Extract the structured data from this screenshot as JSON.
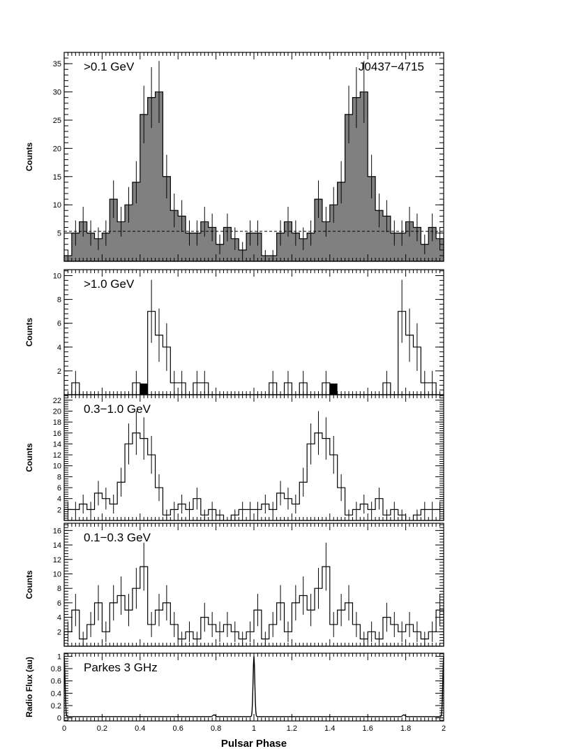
{
  "figure": {
    "x_axis_title": "Pulsar Phase",
    "pulsar_name": "J0437−4715"
  },
  "chart_data": [
    {
      "type": "histogram",
      "label": ">0.1 GeV",
      "ylabel": "Counts",
      "ylim": [
        0,
        37
      ],
      "yticks": [
        5,
        10,
        15,
        20,
        25,
        30,
        35
      ],
      "xlim": [
        0,
        2
      ],
      "bin_width": 0.04,
      "filled": true,
      "fill_color": "#808080",
      "values": [
        1,
        5,
        7,
        5,
        4,
        5,
        11,
        7,
        10,
        14,
        26,
        29,
        30,
        15,
        9,
        8,
        5,
        5,
        7,
        6,
        3,
        6,
        4,
        2,
        5,
        5,
        1
      ],
      "background_level": 5.3,
      "error_bars": true
    },
    {
      "type": "histogram",
      "label": ">1.0 GeV",
      "ylabel": "Counts",
      "ylim": [
        0,
        10.5
      ],
      "yticks": [
        2,
        4,
        6,
        8,
        10
      ],
      "xlim": [
        0,
        2
      ],
      "bin_width": 0.04,
      "filled": false,
      "values": [
        0,
        1,
        0,
        0,
        0,
        0,
        0,
        0,
        0,
        1,
        0,
        7,
        5,
        4,
        1,
        1,
        0,
        1,
        1,
        0,
        0,
        0,
        0,
        0,
        0,
        0,
        0,
        1,
        0,
        1,
        0,
        1,
        0
      ],
      "markers": [
        0.42,
        1.42
      ],
      "error_bars": true
    },
    {
      "type": "histogram",
      "label": "0.3−1.0 GeV",
      "ylabel": "Counts",
      "ylim": [
        0,
        23
      ],
      "yticks": [
        2,
        4,
        6,
        8,
        10,
        12,
        14,
        16,
        18,
        20,
        22
      ],
      "xlim": [
        0,
        2
      ],
      "bin_width": 0.04,
      "filled": false,
      "values": [
        2,
        2,
        3,
        2,
        5,
        4,
        3,
        7,
        14,
        16,
        15,
        12,
        6,
        1,
        2,
        3,
        2,
        4,
        1,
        2,
        1,
        0,
        1,
        2
      ],
      "error_bars": true
    },
    {
      "type": "histogram",
      "label": "0.1−0.3 GeV",
      "ylabel": "Counts",
      "ylim": [
        0,
        17
      ],
      "yticks": [
        2,
        4,
        6,
        8,
        10,
        12,
        14,
        16
      ],
      "xlim": [
        0,
        2
      ],
      "bin_width": 0.04,
      "filled": false,
      "values": [
        2,
        5,
        1,
        3,
        6,
        2,
        6,
        7,
        5,
        8,
        11,
        3,
        5,
        6,
        3,
        1,
        2,
        1,
        4,
        3,
        2,
        3,
        2,
        1
      ],
      "error_bars": true
    },
    {
      "type": "line",
      "label": "Parkes 3 GHz",
      "ylabel": "Radio Flux (au)",
      "ylim": [
        -0.05,
        1.05
      ],
      "yticks": [
        0,
        0.2,
        0.4,
        0.6,
        0.8,
        1
      ],
      "ytick_labels": [
        "0",
        "0.2",
        "0.4",
        "0.6",
        "0.8",
        "1"
      ],
      "xlim": [
        0,
        2
      ],
      "xticks": [
        0,
        0.2,
        0.4,
        0.6,
        0.8,
        1,
        1.2,
        1.4,
        1.6,
        1.8,
        2
      ],
      "xtick_labels": [
        "0",
        "0.2",
        "0.4",
        "0.6",
        "0.8",
        "1",
        "1.2",
        "1.4",
        "1.6",
        "1.8",
        "2"
      ],
      "peak_phase": 1.0,
      "baseline": 0.02,
      "minor_bumps": [
        0.79,
        1.79
      ]
    }
  ]
}
